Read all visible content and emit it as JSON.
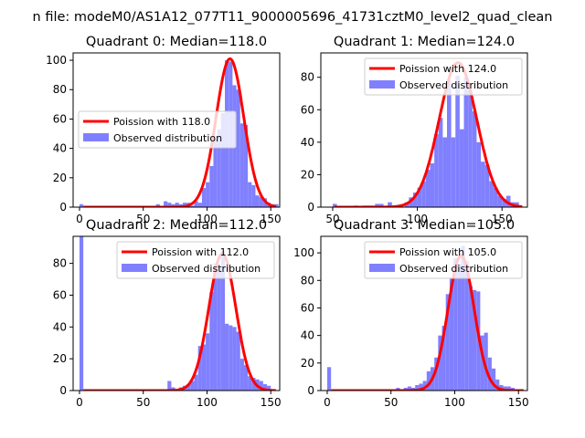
{
  "figure_title": "n file: modeM0/AS1A12_077T11_9000005696_41731cztM0_level2_quad_clean",
  "colors": {
    "fit_line": "#ff0000",
    "histogram": "#8080ff",
    "axis": "#000000",
    "legend_border": "#cccccc"
  },
  "chart_data": [
    {
      "type": "bar",
      "title": "Quadrant 0: Median=118.0",
      "xlim": [
        -5,
        157
      ],
      "ylim": [
        0,
        105
      ],
      "xticks": [
        0,
        50,
        100,
        150
      ],
      "yticks": [
        0,
        20,
        40,
        60,
        80,
        100
      ],
      "legend_position": "center-left",
      "series": [
        {
          "name": "Poission with 118.0",
          "kind": "line",
          "lambda": 118.0,
          "peak": 101
        },
        {
          "name": "Observed distribution",
          "kind": "hist",
          "bin_width": 3,
          "bins": [
            [
              0,
              2
            ],
            [
              60,
              2
            ],
            [
              66,
              4
            ],
            [
              69,
              3
            ],
            [
              72,
              2
            ],
            [
              75,
              3
            ],
            [
              78,
              2
            ],
            [
              81,
              3
            ],
            [
              84,
              3
            ],
            [
              87,
              1
            ],
            [
              90,
              4
            ],
            [
              93,
              3
            ],
            [
              96,
              13
            ],
            [
              99,
              17
            ],
            [
              102,
              28
            ],
            [
              105,
              46
            ],
            [
              108,
              53
            ],
            [
              111,
              64
            ],
            [
              114,
              100
            ],
            [
              117,
              99
            ],
            [
              120,
              83
            ],
            [
              123,
              80
            ],
            [
              126,
              57
            ],
            [
              129,
              56
            ],
            [
              132,
              17
            ],
            [
              135,
              15
            ],
            [
              138,
              8
            ],
            [
              141,
              7
            ],
            [
              144,
              6
            ],
            [
              147,
              3
            ],
            [
              150,
              2
            ],
            [
              153,
              2
            ]
          ]
        }
      ]
    },
    {
      "type": "bar",
      "title": "Quadrant 1: Median=124.0",
      "xlim": [
        43,
        165
      ],
      "ylim": [
        0,
        95
      ],
      "xticks": [
        50,
        100,
        150
      ],
      "yticks": [
        0,
        20,
        40,
        60,
        80
      ],
      "legend_position": "top-right",
      "series": [
        {
          "name": "Poission with 124.0",
          "kind": "line",
          "lambda": 124.0,
          "peak": 89
        },
        {
          "name": "Observed distribution",
          "kind": "hist",
          "bin_width": 2.5,
          "bins": [
            [
              50,
              2
            ],
            [
              62.5,
              1
            ],
            [
              67.5,
              1
            ],
            [
              70,
              1
            ],
            [
              72.5,
              1
            ],
            [
              75,
              2
            ],
            [
              77.5,
              2
            ],
            [
              82.5,
              3
            ],
            [
              85,
              1
            ],
            [
              87.5,
              1
            ],
            [
              92.5,
              3
            ],
            [
              95,
              6
            ],
            [
              97.5,
              9
            ],
            [
              100,
              12
            ],
            [
              102.5,
              16
            ],
            [
              105,
              23
            ],
            [
              107.5,
              27
            ],
            [
              110,
              45
            ],
            [
              112.5,
              55
            ],
            [
              115,
              43
            ],
            [
              117.5,
              78
            ],
            [
              120,
              43
            ],
            [
              122.5,
              81
            ],
            [
              125,
              48
            ],
            [
              127.5,
              80
            ],
            [
              130,
              72
            ],
            [
              132.5,
              59
            ],
            [
              135,
              40
            ],
            [
              137.5,
              28
            ],
            [
              140,
              26
            ],
            [
              142.5,
              16
            ],
            [
              145,
              12
            ],
            [
              147.5,
              7
            ],
            [
              150,
              5
            ],
            [
              152.5,
              7
            ],
            [
              155,
              3
            ],
            [
              157.5,
              3
            ]
          ]
        }
      ]
    },
    {
      "type": "bar",
      "title": "Quadrant 2: Median=112.0",
      "xlim": [
        -5,
        157
      ],
      "ylim": [
        0,
        97
      ],
      "xticks": [
        0,
        50,
        100,
        150
      ],
      "yticks": [
        0,
        20,
        40,
        60,
        80
      ],
      "legend_position": "top-right",
      "series": [
        {
          "name": "Poission with 112.0",
          "kind": "line",
          "lambda": 112.0,
          "peak": 86
        },
        {
          "name": "Observed distribution",
          "kind": "hist",
          "bin_width": 3,
          "bins": [
            [
              0,
              97
            ],
            [
              69,
              6
            ],
            [
              72,
              2
            ],
            [
              78,
              2
            ],
            [
              81,
              3
            ],
            [
              84,
              4
            ],
            [
              87,
              6
            ],
            [
              90,
              10
            ],
            [
              93,
              28
            ],
            [
              96,
              29
            ],
            [
              99,
              36
            ],
            [
              102,
              62
            ],
            [
              105,
              80
            ],
            [
              108,
              77
            ],
            [
              111,
              88
            ],
            [
              114,
              42
            ],
            [
              117,
              41
            ],
            [
              120,
              40
            ],
            [
              123,
              37
            ],
            [
              126,
              20
            ],
            [
              129,
              16
            ],
            [
              132,
              9
            ],
            [
              135,
              8
            ],
            [
              138,
              7
            ],
            [
              141,
              6
            ],
            [
              144,
              4
            ],
            [
              147,
              3
            ]
          ]
        }
      ]
    },
    {
      "type": "bar",
      "title": "Quadrant 3: Median=105.0",
      "xlim": [
        -5,
        157
      ],
      "ylim": [
        0,
        112
      ],
      "xticks": [
        0,
        50,
        100,
        150
      ],
      "yticks": [
        0,
        20,
        40,
        60,
        80,
        100
      ],
      "legend_position": "top-right",
      "series": [
        {
          "name": "Poission with 105.0",
          "kind": "line",
          "lambda": 105.0,
          "peak": 98
        },
        {
          "name": "Observed distribution",
          "kind": "hist",
          "bin_width": 3,
          "bins": [
            [
              0,
              17
            ],
            [
              54,
              2
            ],
            [
              60,
              2
            ],
            [
              63,
              3
            ],
            [
              66,
              2
            ],
            [
              69,
              4
            ],
            [
              72,
              5
            ],
            [
              75,
              7
            ],
            [
              78,
              14
            ],
            [
              81,
              17
            ],
            [
              84,
              24
            ],
            [
              87,
              40
            ],
            [
              90,
              47
            ],
            [
              93,
              70
            ],
            [
              96,
              82
            ],
            [
              99,
              96
            ],
            [
              102,
              92
            ],
            [
              105,
              105
            ],
            [
              108,
              94
            ],
            [
              111,
              76
            ],
            [
              114,
              73
            ],
            [
              117,
              72
            ],
            [
              120,
              40
            ],
            [
              123,
              42
            ],
            [
              126,
              24
            ],
            [
              129,
              16
            ],
            [
              132,
              8
            ],
            [
              135,
              4
            ],
            [
              138,
              3
            ],
            [
              141,
              3
            ],
            [
              144,
              2
            ],
            [
              147,
              1
            ]
          ]
        }
      ]
    }
  ]
}
